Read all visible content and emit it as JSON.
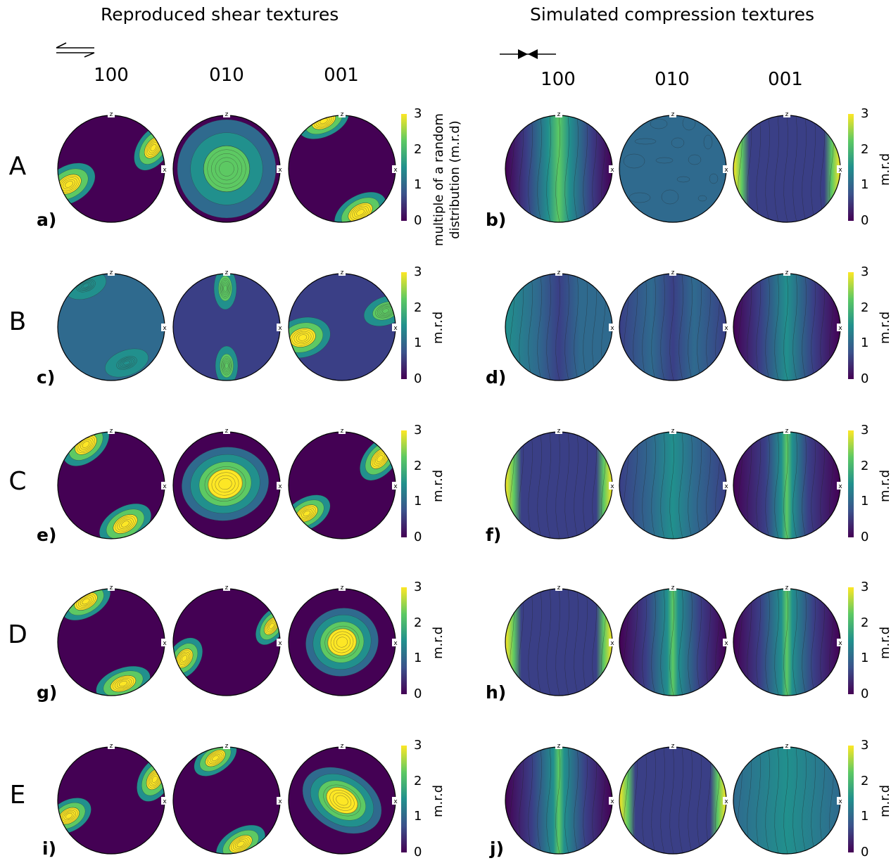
{
  "titles": {
    "left": "Reproduced shear textures",
    "right": "Simulated compression textures"
  },
  "column_headers": {
    "left": [
      "100",
      "010",
      "001"
    ],
    "right": [
      "100",
      "010",
      "001"
    ]
  },
  "axis_labels": {
    "top": "z",
    "right": "x"
  },
  "row_letters": [
    "A",
    "B",
    "C",
    "D",
    "E"
  ],
  "panel_labels": {
    "left": [
      "a)",
      "c)",
      "e)",
      "g)",
      "i)"
    ],
    "right": [
      "b)",
      "d)",
      "f)",
      "h)",
      "j)"
    ]
  },
  "colorbar": {
    "ticks": [
      "3",
      "2",
      "1",
      "0"
    ],
    "label_first_line1": "multiple of a random",
    "label_first_line2": "distribution (m.r.d)",
    "label_short": "m.r.d",
    "colormap": [
      "#440154",
      "#3b528b",
      "#21908d",
      "#5dc963",
      "#fde725"
    ]
  },
  "colors": {
    "background_low": "#440154",
    "mid_low": "#3a3f86",
    "mid": "#2f6a8e",
    "teal": "#21908d",
    "green": "#5dc963",
    "yellow": "#fde725"
  }
}
